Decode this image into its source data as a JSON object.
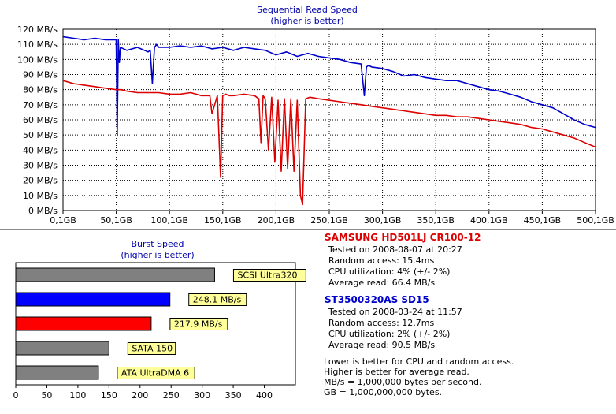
{
  "chart_data": [
    {
      "type": "line",
      "title": "Sequential Read Speed",
      "subtitle": "(higher is better)",
      "xlabel": "",
      "ylabel": "",
      "x_ticks": [
        "0,1GB",
        "50,1GB",
        "100,1GB",
        "150,1GB",
        "200,1GB",
        "250,1GB",
        "300,1GB",
        "350,1GB",
        "400,1GB",
        "450,1GB",
        "500,1GB"
      ],
      "y_ticks": [
        "0 MB/s",
        "10 MB/s",
        "20 MB/s",
        "30 MB/s",
        "40 MB/s",
        "50 MB/s",
        "60 MB/s",
        "70 MB/s",
        "80 MB/s",
        "90 MB/s",
        "100 MB/s",
        "110 MB/s",
        "120 MB/s"
      ],
      "xlim": [
        0.1,
        500.1
      ],
      "ylim": [
        0,
        120
      ],
      "grid": true,
      "series": [
        {
          "name": "ST3500320AS SD15",
          "color": "#0000cc",
          "x": [
            0.1,
            10,
            20,
            30,
            40,
            48,
            50,
            51,
            52,
            53,
            54,
            60,
            70,
            80,
            82,
            84,
            86,
            88,
            90,
            100,
            110,
            120,
            130,
            140,
            150,
            160,
            170,
            180,
            190,
            200,
            210,
            220,
            230,
            240,
            250,
            260,
            270,
            280,
            283,
            285,
            287,
            290,
            300,
            310,
            320,
            330,
            340,
            350,
            360,
            370,
            380,
            390,
            400,
            410,
            420,
            430,
            440,
            450,
            460,
            470,
            480,
            490,
            500.1
          ],
          "y": [
            115,
            114,
            113,
            114,
            113,
            113,
            113,
            50,
            113,
            98,
            108,
            106,
            108,
            105,
            106,
            84,
            108,
            110,
            108,
            108,
            109,
            108,
            109,
            107,
            108,
            106,
            108,
            107,
            106,
            103,
            105,
            102,
            104,
            102,
            101,
            100,
            98,
            97,
            76,
            95,
            96,
            95,
            94,
            92,
            89,
            90,
            88,
            87,
            86,
            86,
            84,
            82,
            80,
            79,
            77,
            75,
            72,
            70,
            68,
            64,
            60,
            57,
            55
          ]
        },
        {
          "name": "SAMSUNG HD501LJ CR100-12",
          "color": "#dd0000",
          "x": [
            0.1,
            10,
            20,
            30,
            40,
            50,
            55,
            60,
            70,
            80,
            90,
            100,
            110,
            120,
            130,
            135,
            138,
            140,
            145,
            148,
            150,
            153,
            156,
            160,
            170,
            180,
            182,
            184,
            186,
            188,
            190,
            193,
            196,
            199,
            202,
            205,
            208,
            211,
            214,
            217,
            220,
            223,
            225,
            228,
            232,
            240,
            250,
            260,
            270,
            280,
            290,
            300,
            310,
            320,
            330,
            340,
            350,
            360,
            370,
            380,
            390,
            400,
            410,
            420,
            430,
            440,
            450,
            460,
            470,
            480,
            490,
            500.1
          ],
          "y": [
            86,
            84,
            83,
            82,
            81,
            80,
            80,
            79,
            78,
            78,
            78,
            77,
            77,
            78,
            76,
            76,
            76,
            64,
            76,
            22,
            76,
            77,
            76,
            76,
            77,
            76,
            75,
            74,
            45,
            76,
            74,
            40,
            75,
            32,
            73,
            26,
            74,
            28,
            74,
            26,
            73,
            10,
            4,
            74,
            75,
            74,
            73,
            72,
            71,
            70,
            69,
            68,
            67,
            66,
            65,
            64,
            63,
            63,
            62,
            62,
            61,
            60,
            59,
            58,
            57,
            55,
            54,
            52,
            50,
            48,
            45,
            42
          ]
        }
      ]
    },
    {
      "type": "bar",
      "orientation": "horizontal",
      "title": "Burst Speed",
      "subtitle": "(higher is better)",
      "xlim": [
        0,
        450
      ],
      "x_ticks": [
        "0",
        "50",
        "100",
        "150",
        "200",
        "250",
        "300",
        "350",
        "400"
      ],
      "bars": [
        {
          "label": "SCSI Ultra320",
          "value": 320,
          "color": "#808080"
        },
        {
          "label": "248.1 MB/s",
          "value": 248.1,
          "color": "#0000ff"
        },
        {
          "label": "217.9 MB/s",
          "value": 217.9,
          "color": "#ff0000"
        },
        {
          "label": "SATA 150",
          "value": 150,
          "color": "#808080"
        },
        {
          "label": "ATA UltraDMA 6",
          "value": 133,
          "color": "#808080"
        }
      ]
    }
  ],
  "drives": [
    {
      "name": "SAMSUNG HD501LJ CR100-12",
      "color": "#dd0000",
      "tested": "Tested on 2008-08-07 at 20:27",
      "random_access": "Random access: 15.4ms",
      "cpu": "CPU utilization: 4% (+/- 2%)",
      "average_read": "Average read: 66.4 MB/s"
    },
    {
      "name": "ST3500320AS SD15",
      "color": "#0000cc",
      "tested": "Tested on 2008-03-24 at 11:57",
      "random_access": "Random access: 12.7ms",
      "cpu": "CPU utilization: 2% (+/- 2%)",
      "average_read": "Average read: 90.5 MB/s"
    }
  ],
  "notes": [
    "Lower is better for CPU and random access.",
    "Higher is better for average read.",
    "MB/s = 1,000,000 bytes per second.",
    "GB = 1,000,000,000 bytes."
  ],
  "colors": {
    "title_text": "#0000aa",
    "grid": "#000000",
    "label_box": "#ffff99"
  }
}
